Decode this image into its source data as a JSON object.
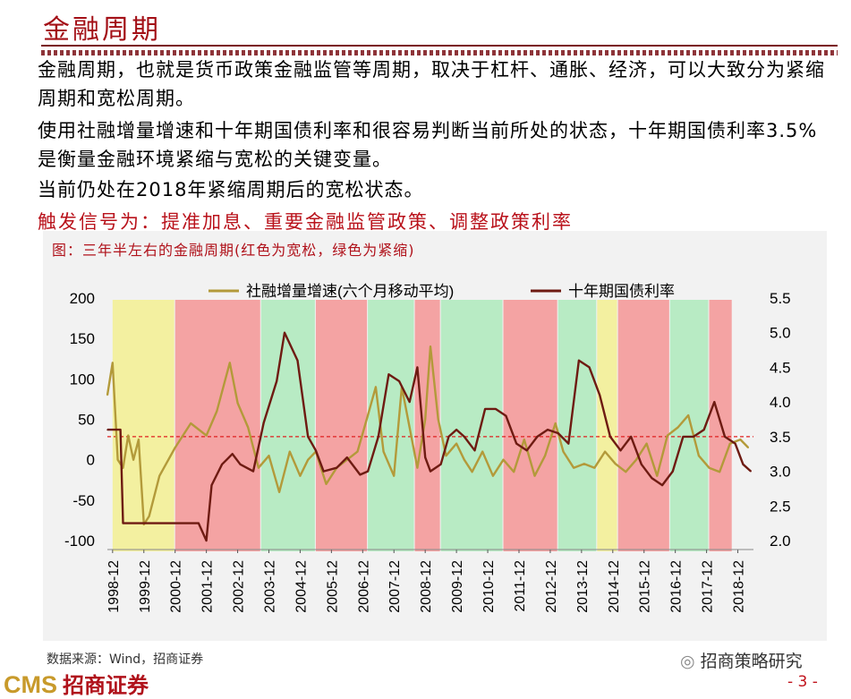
{
  "page": {
    "title": "金融周期",
    "paragraphs": [
      "金融周期，也就是货币政策金融监管等周期，取决于杠杆、通胀、经济，可以大致分为紧缩周期和宽松周期。",
      "使用社融增量增速和十年期国债利率和很容易判断当前所处的状态，十年期国债利率3.5%是衡量金融环境紧缩与宽松的关键变量。",
      "当前仍处在2018年紧缩周期后的宽松状态。"
    ],
    "trigger": "触发信号为：提准加息、重要金融监管政策、调整政策利率",
    "figure_caption": "图：三年半左右的金融周期(红色为宽松，绿色为紧缩)",
    "source": "数据来源：Wind，招商证券",
    "logo_latin": "CMS",
    "logo_cn": "招商证券",
    "wechat": "招商策略研究",
    "page_number": "- 3 -"
  },
  "chart_data": {
    "type": "line",
    "x_range": [
      "1998-10",
      "2019-06"
    ],
    "x_ticks": [
      "1998-12",
      "1999-12",
      "2000-12",
      "2001-12",
      "2002-12",
      "2003-12",
      "2004-12",
      "2005-12",
      "2006-12",
      "2007-12",
      "2008-12",
      "2009-12",
      "2010-12",
      "2011-12",
      "2012-12",
      "2013-12",
      "2014-12",
      "2015-12",
      "2016-12",
      "2017-12",
      "2018-12"
    ],
    "y_left": {
      "ylim": [
        -100,
        200
      ],
      "ticks": [
        -100,
        -50,
        0,
        50,
        100,
        150,
        200
      ]
    },
    "y_right": {
      "ylim": [
        2.0,
        5.5
      ],
      "ticks": [
        2.0,
        2.5,
        3.0,
        3.5,
        4.0,
        4.5,
        5.0,
        5.5
      ]
    },
    "colors": {
      "easing": "#f4a3a3",
      "tightening": "#b8ebc4",
      "neutral": "#f3f0a0",
      "tsf": "#b39a3a",
      "yield": "#6e1b12",
      "threshold": "#e02020"
    },
    "threshold": {
      "axis": "right",
      "value": 3.5
    },
    "periods": [
      {
        "start": "1998-12",
        "end": "2000-12",
        "kind": "neutral"
      },
      {
        "start": "2000-12",
        "end": "2003-09",
        "kind": "easing"
      },
      {
        "start": "2003-09",
        "end": "2005-06",
        "kind": "tightening"
      },
      {
        "start": "2005-06",
        "end": "2007-02",
        "kind": "easing"
      },
      {
        "start": "2007-02",
        "end": "2008-08",
        "kind": "tightening"
      },
      {
        "start": "2008-08",
        "end": "2009-06",
        "kind": "easing"
      },
      {
        "start": "2009-06",
        "end": "2011-06",
        "kind": "tightening"
      },
      {
        "start": "2011-06",
        "end": "2013-03",
        "kind": "easing"
      },
      {
        "start": "2013-03",
        "end": "2014-06",
        "kind": "tightening"
      },
      {
        "start": "2014-06",
        "end": "2015-02",
        "kind": "neutral"
      },
      {
        "start": "2015-02",
        "end": "2016-10",
        "kind": "easing"
      },
      {
        "start": "2016-10",
        "end": "2018-01",
        "kind": "tightening"
      },
      {
        "start": "2018-01",
        "end": "2018-10",
        "kind": "easing"
      }
    ],
    "series": [
      {
        "name": "社融增量增速(六个月移动平均)",
        "axis": "left",
        "x": [
          "1998-10",
          "1998-12",
          "1999-02",
          "1999-04",
          "1999-06",
          "1999-08",
          "1999-10",
          "1999-12",
          "2000-02",
          "2000-06",
          "2000-12",
          "2001-06",
          "2001-12",
          "2002-04",
          "2002-09",
          "2002-12",
          "2003-04",
          "2003-08",
          "2003-12",
          "2004-04",
          "2004-08",
          "2004-12",
          "2005-03",
          "2005-06",
          "2005-10",
          "2006-02",
          "2006-06",
          "2006-10",
          "2007-02",
          "2007-05",
          "2007-08",
          "2007-12",
          "2008-03",
          "2008-06",
          "2008-09",
          "2008-12",
          "2009-02",
          "2009-05",
          "2009-08",
          "2009-12",
          "2010-03",
          "2010-06",
          "2010-10",
          "2011-02",
          "2011-06",
          "2011-10",
          "2012-02",
          "2012-06",
          "2012-10",
          "2013-02",
          "2013-05",
          "2013-09",
          "2014-01",
          "2014-05",
          "2014-09",
          "2015-01",
          "2015-05",
          "2015-09",
          "2016-01",
          "2016-05",
          "2016-09",
          "2017-01",
          "2017-05",
          "2017-09",
          "2018-01",
          "2018-05",
          "2018-09",
          "2019-01",
          "2019-04"
        ],
        "values": [
          80,
          120,
          0,
          -10,
          30,
          0,
          25,
          -80,
          -70,
          -20,
          15,
          45,
          30,
          60,
          120,
          70,
          40,
          -10,
          5,
          -40,
          10,
          -20,
          0,
          10,
          -30,
          -10,
          0,
          10,
          55,
          90,
          10,
          -20,
          90,
          40,
          -10,
          50,
          140,
          50,
          5,
          20,
          0,
          -15,
          10,
          -20,
          0,
          -15,
          25,
          -20,
          5,
          45,
          10,
          -10,
          -5,
          -10,
          10,
          -5,
          -15,
          0,
          20,
          -20,
          30,
          40,
          55,
          5,
          -10,
          -15,
          20,
          25,
          15
        ]
      },
      {
        "name": "十年期国债利率",
        "axis": "right",
        "x": [
          "1998-10",
          "1999-03",
          "1999-04",
          "2000-06",
          "2001-09",
          "2001-12",
          "2002-02",
          "2002-06",
          "2002-10",
          "2003-01",
          "2003-06",
          "2003-10",
          "2004-03",
          "2004-06",
          "2004-11",
          "2005-03",
          "2005-06",
          "2005-09",
          "2006-02",
          "2006-06",
          "2006-11",
          "2007-02",
          "2007-06",
          "2007-10",
          "2008-02",
          "2008-06",
          "2008-09",
          "2008-12",
          "2009-02",
          "2009-06",
          "2009-09",
          "2009-12",
          "2010-03",
          "2010-07",
          "2010-11",
          "2011-03",
          "2011-07",
          "2011-11",
          "2012-03",
          "2012-07",
          "2012-11",
          "2013-03",
          "2013-07",
          "2013-11",
          "2014-03",
          "2014-07",
          "2014-11",
          "2015-03",
          "2015-07",
          "2015-11",
          "2016-03",
          "2016-07",
          "2016-11",
          "2017-03",
          "2017-07",
          "2017-11",
          "2018-03",
          "2018-07",
          "2018-11",
          "2019-02",
          "2019-05"
        ],
        "values": [
          3.6,
          3.6,
          2.25,
          2.25,
          2.25,
          2.0,
          2.8,
          3.1,
          3.25,
          3.1,
          3.0,
          3.7,
          4.3,
          5.0,
          4.6,
          3.5,
          3.3,
          3.0,
          3.05,
          3.2,
          2.95,
          3.0,
          3.5,
          4.4,
          4.3,
          4.0,
          4.5,
          3.2,
          3.0,
          3.1,
          3.5,
          3.6,
          3.5,
          3.3,
          3.9,
          3.9,
          3.8,
          3.4,
          3.3,
          3.5,
          3.6,
          3.55,
          3.4,
          4.6,
          4.5,
          4.1,
          3.5,
          3.3,
          3.5,
          3.1,
          2.9,
          2.8,
          3.0,
          3.5,
          3.5,
          3.6,
          4.0,
          3.5,
          3.4,
          3.1,
          3.0
        ]
      }
    ]
  }
}
